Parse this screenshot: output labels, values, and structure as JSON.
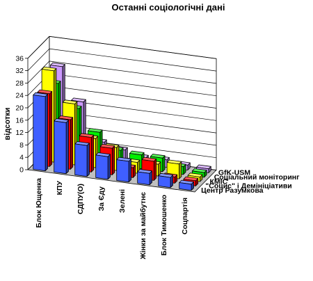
{
  "chart_data": {
    "type": "bar",
    "title": "Останні соціологічні дані",
    "ylabel": "відсотки",
    "xlabel": "",
    "ylim": [
      0,
      36
    ],
    "yticks": [
      0,
      4,
      8,
      12,
      16,
      20,
      24,
      28,
      32,
      36
    ],
    "grid": true,
    "categories": [
      "Блок Ющенка",
      "КПУ",
      "СДПУ(О)",
      "За Єду",
      "Зелені",
      "Жінки за майбутнє",
      "Блок Тимошенко",
      "Соцпартія"
    ],
    "series": [
      {
        "name": "Центр Разумкова",
        "color": "#3f5fff",
        "values": [
          24.0,
          16.5,
          10.0,
          7.3,
          6.7,
          3.7,
          3.3,
          2.0
        ]
      },
      {
        "name": "\"Социс\" і Демініціативи",
        "color": "#ff0000",
        "values": [
          23.5,
          16.0,
          11.2,
          8.6,
          3.2,
          6.2,
          2.0,
          1.7
        ]
      },
      {
        "name": "КМІС",
        "color": "#ffff00",
        "values": [
          29.5,
          19.7,
          9.4,
          7.4,
          3.5,
          3.8,
          4.8,
          1.5
        ]
      },
      {
        "name": "Соціальний моніторинг",
        "color": "#00ee00",
        "values": [
          24.0,
          16.8,
          10.0,
          5.1,
          4.5,
          4.4,
          2.5,
          1.5
        ]
      },
      {
        "name": "GfK-USM",
        "color": "#cc99ff",
        "values": [
          28.0,
          17.5,
          5.4,
          3.8,
          2.2,
          2.4,
          1.6,
          1.3
        ]
      }
    ]
  }
}
